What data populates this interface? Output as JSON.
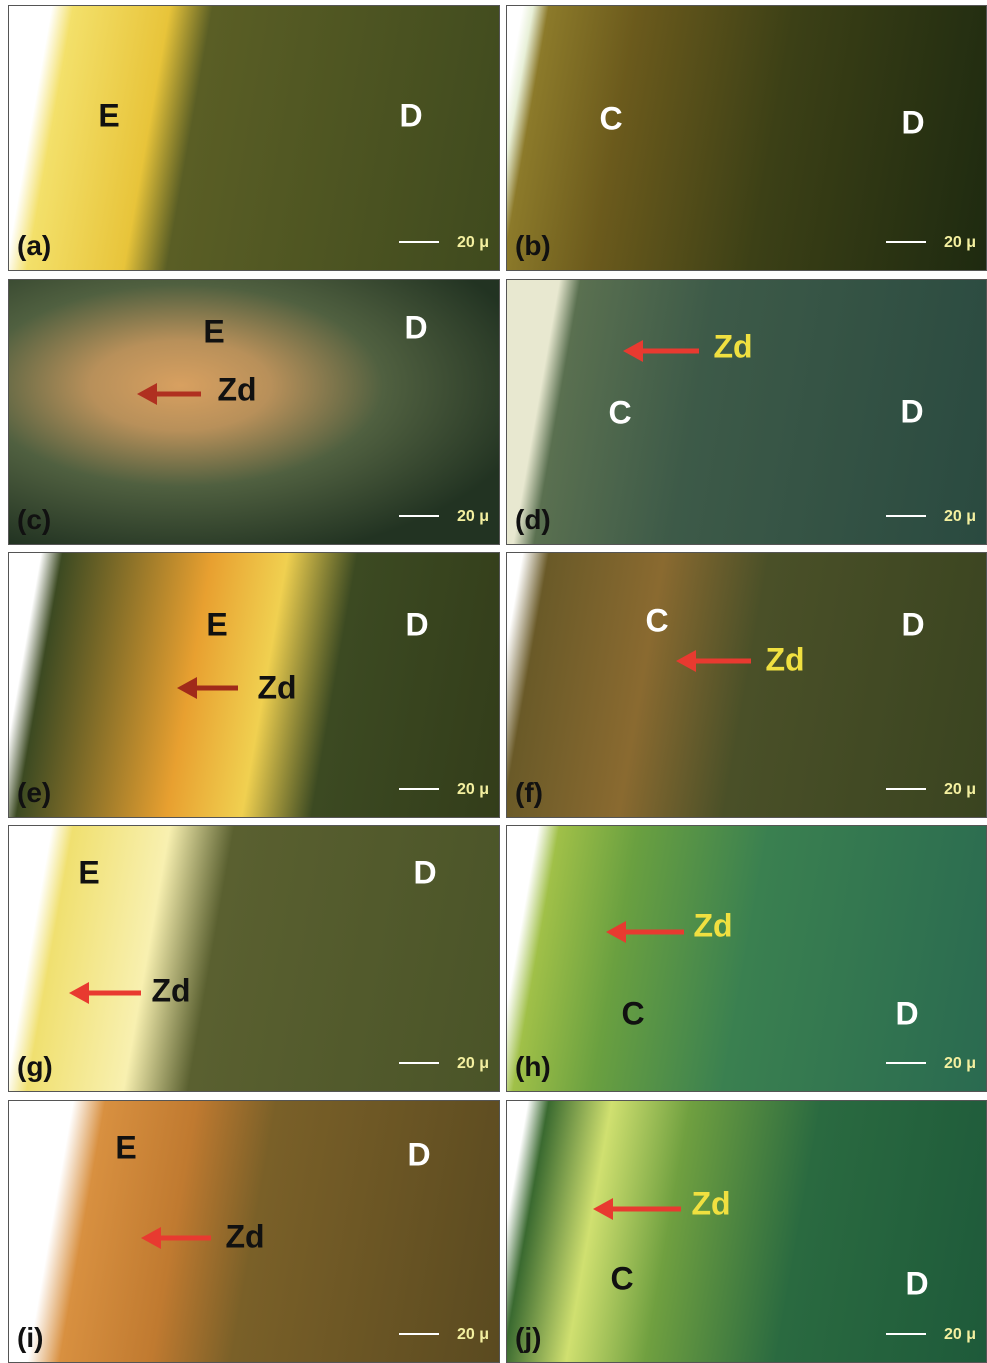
{
  "panels": [
    {
      "label": "(a)",
      "annotations": [
        "E",
        "D"
      ],
      "scale": "20 μ"
    },
    {
      "label": "(b)",
      "annotations": [
        "C",
        "D"
      ],
      "scale": "20 μ"
    },
    {
      "label": "(c)",
      "annotations": [
        "E",
        "D",
        "Zd"
      ],
      "scale": "20 μ"
    },
    {
      "label": "(d)",
      "annotations": [
        "Zd",
        "C",
        "D"
      ],
      "scale": "20 μ"
    },
    {
      "label": "(e)",
      "annotations": [
        "E",
        "D",
        "Zd"
      ],
      "scale": "20 μ"
    },
    {
      "label": "(f)",
      "annotations": [
        "C",
        "D",
        "Zd"
      ],
      "scale": "20 μ"
    },
    {
      "label": "(g)",
      "annotations": [
        "E",
        "D",
        "Zd"
      ],
      "scale": "20 μ"
    },
    {
      "label": "(h)",
      "annotations": [
        "Zd",
        "C",
        "D"
      ],
      "scale": "20 μ"
    },
    {
      "label": "(i)",
      "annotations": [
        "E",
        "D",
        "Zd"
      ],
      "scale": "20 μ"
    },
    {
      "label": "(j)",
      "annotations": [
        "Zd",
        "C",
        "D"
      ],
      "scale": "20 μ"
    }
  ]
}
